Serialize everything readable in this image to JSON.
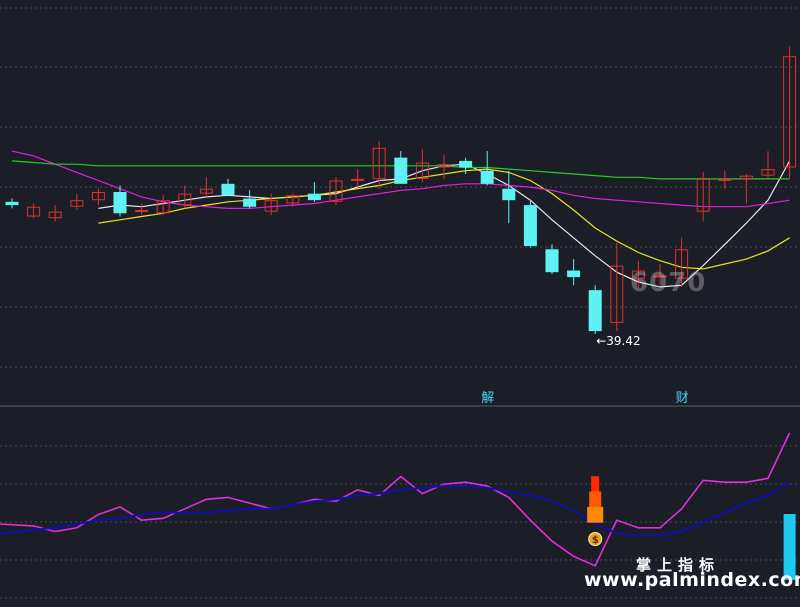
{
  "chart_data": [
    {
      "type": "candlestick",
      "title": "",
      "ylim": [
        36,
        58
      ],
      "grid": true,
      "annotations": [
        {
          "text": "←39.42",
          "x": 27,
          "kind": "low-marker"
        },
        {
          "text": "解",
          "x": 22,
          "kind": "event-marker"
        },
        {
          "text": "财",
          "x": 31,
          "kind": "event-marker"
        }
      ],
      "candles": [
        {
          "o": 47.5,
          "h": 47.7,
          "l": 47.1,
          "c": 47.3
        },
        {
          "o": 46.6,
          "h": 47.4,
          "l": 46.5,
          "c": 47.2
        },
        {
          "o": 46.5,
          "h": 47.3,
          "l": 46.3,
          "c": 46.9
        },
        {
          "o": 47.2,
          "h": 48.0,
          "l": 47.0,
          "c": 47.6
        },
        {
          "o": 47.6,
          "h": 48.3,
          "l": 47.3,
          "c": 48.1
        },
        {
          "o": 48.1,
          "h": 48.5,
          "l": 46.6,
          "c": 46.8
        },
        {
          "o": 46.9,
          "h": 47.4,
          "l": 46.7,
          "c": 47.0
        },
        {
          "o": 46.8,
          "h": 47.9,
          "l": 46.7,
          "c": 47.6
        },
        {
          "o": 47.3,
          "h": 48.5,
          "l": 47.1,
          "c": 48.0
        },
        {
          "o": 48.0,
          "h": 49.0,
          "l": 47.8,
          "c": 48.3
        },
        {
          "o": 48.6,
          "h": 48.9,
          "l": 47.9,
          "c": 47.9
        },
        {
          "o": 47.7,
          "h": 48.2,
          "l": 47.1,
          "c": 47.2
        },
        {
          "o": 46.9,
          "h": 48.0,
          "l": 46.7,
          "c": 47.6
        },
        {
          "o": 47.4,
          "h": 48.0,
          "l": 47.2,
          "c": 47.9
        },
        {
          "o": 48.0,
          "h": 48.7,
          "l": 47.5,
          "c": 47.6
        },
        {
          "o": 47.5,
          "h": 49.0,
          "l": 47.3,
          "c": 48.8
        },
        {
          "o": 48.9,
          "h": 49.5,
          "l": 48.4,
          "c": 48.9
        },
        {
          "o": 48.9,
          "h": 51.2,
          "l": 48.3,
          "c": 50.8
        },
        {
          "o": 50.2,
          "h": 50.6,
          "l": 48.6,
          "c": 48.6
        },
        {
          "o": 48.9,
          "h": 50.7,
          "l": 48.7,
          "c": 49.9
        },
        {
          "o": 49.6,
          "h": 50.4,
          "l": 48.9,
          "c": 49.8
        },
        {
          "o": 50.0,
          "h": 50.2,
          "l": 49.2,
          "c": 49.6
        },
        {
          "o": 49.4,
          "h": 50.6,
          "l": 48.5,
          "c": 48.6
        },
        {
          "o": 48.3,
          "h": 49.4,
          "l": 46.2,
          "c": 47.6
        },
        {
          "o": 47.3,
          "h": 47.6,
          "l": 44.7,
          "c": 44.8
        },
        {
          "o": 44.6,
          "h": 44.9,
          "l": 43.1,
          "c": 43.2
        },
        {
          "o": 43.3,
          "h": 44.0,
          "l": 42.4,
          "c": 42.9
        },
        {
          "o": 42.1,
          "h": 42.4,
          "l": 39.42,
          "c": 39.6
        },
        {
          "o": 40.1,
          "h": 45.0,
          "l": 39.6,
          "c": 43.6
        },
        {
          "o": 42.8,
          "h": 43.9,
          "l": 42.2,
          "c": 43.3
        },
        {
          "o": 43.0,
          "h": 43.7,
          "l": 42.4,
          "c": 43.0
        },
        {
          "o": 42.8,
          "h": 45.3,
          "l": 42.3,
          "c": 44.6
        },
        {
          "o": 46.9,
          "h": 49.3,
          "l": 46.3,
          "c": 48.9
        },
        {
          "o": 48.9,
          "h": 49.4,
          "l": 48.3,
          "c": 48.9
        },
        {
          "o": 48.9,
          "h": 49.2,
          "l": 47.4,
          "c": 49.1
        },
        {
          "o": 49.1,
          "h": 50.6,
          "l": 48.9,
          "c": 49.5
        },
        {
          "o": 49.6,
          "h": 57.0,
          "l": 48.9,
          "c": 56.4
        }
      ],
      "series": [
        {
          "key": "ma_white",
          "color": "#e8e8e8",
          "values": [
            null,
            null,
            null,
            null,
            47.1,
            47.3,
            47.2,
            47.4,
            47.6,
            47.8,
            47.9,
            47.8,
            47.7,
            47.8,
            47.9,
            48.0,
            48.4,
            48.8,
            48.9,
            49.4,
            49.7,
            49.8,
            49.2,
            48.5,
            47.6,
            46.4,
            45.3,
            44.2,
            43.2,
            42.6,
            42.3,
            42.4,
            43.6,
            44.9,
            46.2,
            47.6,
            50.0
          ]
        },
        {
          "key": "ma_yellow",
          "color": "#e6e61e",
          "values": [
            null,
            null,
            null,
            null,
            46.2,
            46.4,
            46.6,
            46.8,
            47.1,
            47.3,
            47.5,
            47.6,
            47.7,
            47.8,
            47.9,
            48.1,
            48.3,
            48.5,
            48.8,
            49.0,
            49.2,
            49.4,
            49.5,
            49.3,
            48.8,
            48.0,
            47.0,
            45.9,
            45.1,
            44.4,
            43.9,
            43.5,
            43.4,
            43.7,
            44.0,
            44.5,
            45.3
          ]
        },
        {
          "key": "ma_magenta",
          "color": "#e020e0",
          "values": [
            50.6,
            50.3,
            49.8,
            49.3,
            48.8,
            48.3,
            47.8,
            47.5,
            47.3,
            47.2,
            47.1,
            47.1,
            47.2,
            47.3,
            47.4,
            47.6,
            47.8,
            48.0,
            48.2,
            48.3,
            48.5,
            48.6,
            48.6,
            48.5,
            48.4,
            48.2,
            47.9,
            47.7,
            47.6,
            47.5,
            47.4,
            47.3,
            47.2,
            47.2,
            47.2,
            47.4,
            47.6
          ]
        },
        {
          "key": "ma_green",
          "color": "#28cc28",
          "values": [
            50.0,
            49.9,
            49.8,
            49.8,
            49.7,
            49.7,
            49.7,
            49.7,
            49.7,
            49.7,
            49.7,
            49.7,
            49.7,
            49.7,
            49.7,
            49.7,
            49.7,
            49.7,
            49.7,
            49.7,
            49.7,
            49.6,
            49.6,
            49.5,
            49.4,
            49.3,
            49.2,
            49.1,
            49.0,
            49.0,
            48.9,
            48.9,
            48.9,
            48.9,
            48.9,
            48.9,
            48.9
          ]
        }
      ]
    },
    {
      "type": "line",
      "title": "",
      "ylim": [
        0,
        100
      ],
      "series": [
        {
          "key": "osc_magenta",
          "color": "#e030e0",
          "values": [
            40,
            39,
            36,
            38,
            45,
            49,
            42,
            43,
            48,
            53,
            54,
            51,
            48,
            50,
            53,
            52,
            58,
            55,
            65,
            56,
            61,
            62,
            60,
            54,
            42,
            31,
            23,
            18,
            42,
            38,
            38,
            48,
            63,
            62,
            62,
            64,
            88
          ]
        },
        {
          "key": "osc_navy",
          "color": "#1010b0",
          "values": [
            35,
            37,
            38,
            40,
            42,
            43,
            45,
            46,
            46,
            46,
            47,
            48,
            48,
            50,
            52,
            53,
            55,
            56,
            58,
            59,
            60,
            60,
            59,
            57,
            55,
            52,
            47,
            40,
            35,
            34,
            34,
            36,
            41,
            46,
            51,
            55,
            62
          ]
        }
      ],
      "markers": [
        {
          "kind": "red-stacked-bar",
          "x": 27,
          "value": 42
        },
        {
          "kind": "cyan-bar",
          "x": 36,
          "value": 28
        },
        {
          "kind": "money-bag-icon",
          "x": 27
        }
      ]
    }
  ],
  "watermarks": {
    "site": "www.palmindex.com",
    "brand": "掌上指标",
    "overlay": "6070"
  },
  "colors": {
    "background": "#1b1e26",
    "up": "#e03030",
    "down": "#5ef2f2",
    "grid": "#4a4e5a",
    "text": "#ffffff"
  }
}
